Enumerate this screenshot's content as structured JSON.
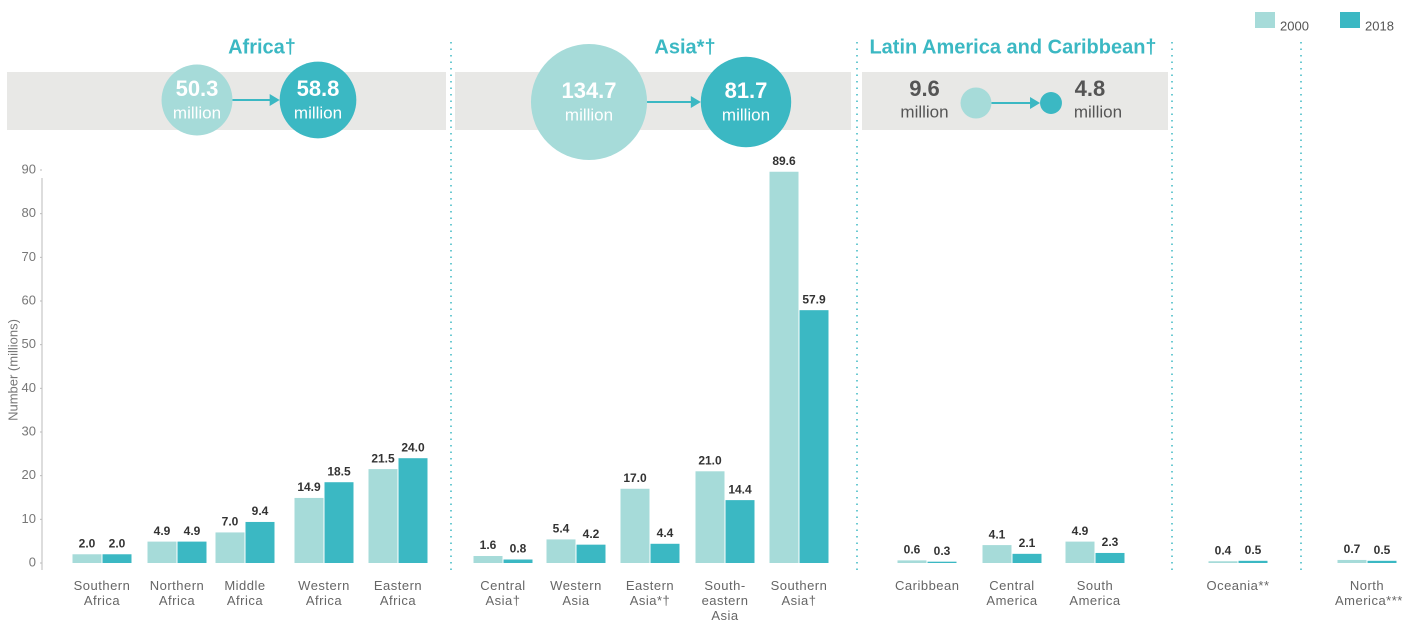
{
  "chart_data": {
    "type": "bar",
    "ylabel": "Number (millions)",
    "ylim": [
      0,
      90
    ],
    "yticks": [
      0,
      10,
      20,
      30,
      40,
      50,
      60,
      70,
      80,
      90
    ],
    "categories": [
      "Southern Africa",
      "Northern Africa",
      "Middle Africa",
      "Western Africa",
      "Eastern Africa",
      "Central Asia†",
      "Western Asia",
      "Eastern Asia*†",
      "South-eastern Asia",
      "Southern Asia†",
      "Caribbean",
      "Central America",
      "South America",
      "Oceania**",
      "North America***"
    ],
    "series": [
      {
        "name": "2000",
        "color": "#a6dbd9",
        "values": [
          2.0,
          4.9,
          7.0,
          14.9,
          21.5,
          1.6,
          5.4,
          17.0,
          21.0,
          89.6,
          0.6,
          4.1,
          4.9,
          0.4,
          0.7
        ],
        "value_labels": [
          "2.0",
          "4.9",
          "7.0",
          "14.9",
          "21.5",
          "1.6",
          "5.4",
          "17.0",
          "21.0",
          "89.6",
          "0.6",
          "4.1",
          "4.9",
          "0.4",
          "0.7"
        ]
      },
      {
        "name": "2018",
        "color": "#3bb8c3",
        "values": [
          2.0,
          4.9,
          9.4,
          18.5,
          24.0,
          0.8,
          4.2,
          4.4,
          14.4,
          57.9,
          0.3,
          2.1,
          2.3,
          0.5,
          0.5
        ],
        "value_labels": [
          "2.0",
          "4.9",
          "9.4",
          "18.5",
          "24.0",
          "0.8",
          "4.2",
          "4.4",
          "14.4",
          "57.9",
          "0.3",
          "2.1",
          "2.3",
          "0.5",
          "0.5"
        ]
      }
    ],
    "bubble_unit": "million",
    "regions": [
      {
        "name": "Africa†",
        "values": [
          50.3,
          58.8
        ]
      },
      {
        "name": "Asia*†",
        "values": [
          134.7,
          81.7
        ]
      },
      {
        "name": "Latin America and Caribbean†",
        "values": [
          9.6,
          4.8
        ]
      }
    ]
  }
}
